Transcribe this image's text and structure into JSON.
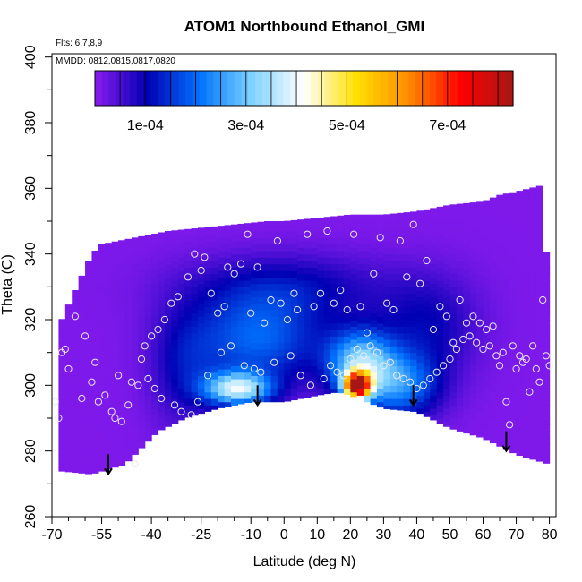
{
  "chart_data": {
    "type": "heatmap",
    "title": "ATOM1 Northbound Ethanol_GMI",
    "annotations": [
      "Flts: 6,7,8,9",
      "MMDD: 0812,0815,0817,0820"
    ],
    "xlabel": "Latitude (deg N)",
    "ylabel": "Theta (C)",
    "xlim": [
      -70,
      82
    ],
    "ylim": [
      260,
      401
    ],
    "x_ticks": [
      -70,
      -55,
      -40,
      -25,
      -10,
      0,
      10,
      20,
      30,
      40,
      50,
      60,
      70,
      80
    ],
    "x_tick_labels": [
      "-70",
      "-55",
      "-40",
      "-25",
      "-10",
      "0",
      "10",
      "20",
      "30",
      "40",
      "50",
      "60",
      "70",
      "80"
    ],
    "x_minor_ticks": [
      -65,
      -60,
      -50,
      -45,
      -35,
      -30,
      -20,
      -15,
      -5,
      5,
      15,
      25,
      35,
      45,
      55,
      65,
      75
    ],
    "y_ticks": [
      260,
      280,
      300,
      320,
      340,
      360,
      380,
      400
    ],
    "y_tick_labels": [
      "260",
      "280",
      "300",
      "320",
      "340",
      "360",
      "380",
      "400"
    ],
    "y_minor_ticks": [
      270,
      290,
      310,
      330,
      350,
      370,
      390
    ],
    "colorbar": {
      "range": [
        0,
        0.00083
      ],
      "ticks": [
        0.0001,
        0.0003,
        0.0005,
        0.0007
      ],
      "tick_labels": [
        "1e-04",
        "3e-04",
        "5e-04",
        "7e-04"
      ],
      "colors": [
        "#8b1cf0",
        "#0000b4",
        "#0073ff",
        "#7ed2ff",
        "#ffffff",
        "#ffe100",
        "#ff8c00",
        "#ff0000",
        "#a61616"
      ]
    },
    "field": {
      "lat_range": [
        -68,
        80
      ],
      "top_boundary": [
        [
          -68,
          318
        ],
        [
          -58,
          340
        ],
        [
          -55,
          343
        ],
        [
          -45,
          345
        ],
        [
          -35,
          347
        ],
        [
          -25,
          348
        ],
        [
          -15,
          349
        ],
        [
          -5,
          350
        ],
        [
          0,
          350
        ],
        [
          10,
          351
        ],
        [
          20,
          352
        ],
        [
          30,
          352
        ],
        [
          40,
          353
        ],
        [
          50,
          355
        ],
        [
          60,
          356
        ],
        [
          65,
          358
        ],
        [
          70,
          359
        ],
        [
          78,
          361
        ],
        [
          80,
          320
        ]
      ],
      "bottom_boundary": [
        [
          -68,
          274
        ],
        [
          -58,
          273
        ],
        [
          -48,
          276
        ],
        [
          -38,
          286
        ],
        [
          -30,
          290
        ],
        [
          -20,
          293
        ],
        [
          -10,
          295
        ],
        [
          0,
          295
        ],
        [
          10,
          297
        ],
        [
          16,
          298
        ],
        [
          20,
          297
        ],
        [
          30,
          293
        ],
        [
          40,
          292
        ],
        [
          50,
          287
        ],
        [
          60,
          284
        ],
        [
          70,
          279
        ],
        [
          80,
          276
        ]
      ],
      "background_value": 1e-05,
      "features": [
        {
          "lat": -14,
          "theta": 299,
          "value": 0.00034,
          "lat_width": 10,
          "theta_width": 5
        },
        {
          "lat": -8,
          "theta": 314,
          "value": 0.00018,
          "lat_width": 20,
          "theta_width": 14
        },
        {
          "lat": 1,
          "theta": 330,
          "value": 9e-05,
          "lat_width": 30,
          "theta_width": 10
        },
        {
          "lat": 22,
          "theta": 300,
          "value": 0.00072,
          "lat_width": 4,
          "theta_width": 4
        },
        {
          "lat": 23,
          "theta": 307,
          "value": 0.00028,
          "lat_width": 10,
          "theta_width": 10
        },
        {
          "lat": 35,
          "theta": 300,
          "value": 0.0002,
          "lat_width": 12,
          "theta_width": 10
        },
        {
          "lat": 43,
          "theta": 318,
          "value": 9e-05,
          "lat_width": 15,
          "theta_width": 15
        },
        {
          "lat": -30,
          "theta": 305,
          "value": 8e-05,
          "lat_width": 10,
          "theta_width": 18
        }
      ]
    },
    "observation_points": [
      [
        -69,
        295
      ],
      [
        -68,
        290
      ],
      [
        -67,
        310
      ],
      [
        -66,
        311
      ],
      [
        -63,
        321
      ],
      [
        -61,
        296
      ],
      [
        -58,
        301
      ],
      [
        -56,
        295
      ],
      [
        -54,
        297
      ],
      [
        -52,
        292
      ],
      [
        -51,
        290
      ],
      [
        -49,
        289
      ],
      [
        -47,
        294
      ],
      [
        -45,
        276
      ],
      [
        -43,
        308
      ],
      [
        -42,
        312
      ],
      [
        -40,
        315
      ],
      [
        -38,
        317
      ],
      [
        -36,
        320
      ],
      [
        -34,
        325
      ],
      [
        -32,
        327
      ],
      [
        -29,
        333
      ],
      [
        -27,
        340
      ],
      [
        -25,
        335
      ],
      [
        -24,
        339
      ],
      [
        -22,
        328
      ],
      [
        -20,
        322
      ],
      [
        -18,
        324
      ],
      [
        -17,
        336
      ],
      [
        -15,
        334
      ],
      [
        -13,
        337
      ],
      [
        -11,
        346
      ],
      [
        -10,
        322
      ],
      [
        -8,
        336
      ],
      [
        -6,
        319
      ],
      [
        -4,
        326
      ],
      [
        -2,
        344
      ],
      [
        -1,
        325
      ],
      [
        1,
        320
      ],
      [
        3,
        328
      ],
      [
        4,
        323
      ],
      [
        7,
        346
      ],
      [
        9,
        324
      ],
      [
        11,
        328
      ],
      [
        13,
        347
      ],
      [
        15,
        325
      ],
      [
        17,
        329
      ],
      [
        19,
        323
      ],
      [
        21,
        346
      ],
      [
        23,
        324
      ],
      [
        25,
        316
      ],
      [
        27,
        334
      ],
      [
        29,
        345
      ],
      [
        31,
        325
      ],
      [
        33,
        323
      ],
      [
        35,
        344
      ],
      [
        37,
        333
      ],
      [
        39,
        349
      ],
      [
        41,
        331
      ],
      [
        43,
        338
      ],
      [
        45,
        317
      ],
      [
        47,
        324
      ],
      [
        49,
        321
      ],
      [
        51,
        313
      ],
      [
        53,
        326
      ],
      [
        55,
        319
      ],
      [
        57,
        321
      ],
      [
        59,
        319
      ],
      [
        61,
        317
      ],
      [
        63,
        318
      ],
      [
        65,
        306
      ],
      [
        67,
        295
      ],
      [
        68,
        288
      ],
      [
        70,
        305
      ],
      [
        71,
        309
      ],
      [
        72,
        307
      ],
      [
        73,
        308
      ],
      [
        74,
        298
      ],
      [
        75,
        312
      ],
      [
        76,
        305
      ],
      [
        77,
        301
      ],
      [
        78,
        326
      ],
      [
        79,
        309
      ],
      [
        80,
        306
      ],
      [
        -65,
        305
      ],
      [
        -60,
        315
      ],
      [
        -57,
        307
      ],
      [
        -50,
        303
      ],
      [
        -46,
        301
      ],
      [
        -44,
        300
      ],
      [
        -41,
        302
      ],
      [
        -39,
        299
      ],
      [
        -37,
        296
      ],
      [
        -33,
        294
      ],
      [
        -31,
        292
      ],
      [
        -28,
        291
      ],
      [
        -26,
        295
      ],
      [
        -23,
        303
      ],
      [
        -19,
        310
      ],
      [
        -16,
        312
      ],
      [
        -12,
        306
      ],
      [
        -9,
        305
      ],
      [
        -7,
        304
      ],
      [
        -3,
        307
      ],
      [
        2,
        309
      ],
      [
        5,
        303
      ],
      [
        8,
        300
      ],
      [
        12,
        302
      ],
      [
        14,
        306
      ],
      [
        16,
        304
      ],
      [
        18,
        303
      ],
      [
        20,
        308
      ],
      [
        22,
        311
      ],
      [
        24,
        309
      ],
      [
        26,
        312
      ],
      [
        28,
        310
      ],
      [
        30,
        306
      ],
      [
        32,
        307
      ],
      [
        34,
        303
      ],
      [
        36,
        302
      ],
      [
        38,
        301
      ],
      [
        40,
        299
      ],
      [
        42,
        300
      ],
      [
        44,
        302
      ],
      [
        46,
        304
      ],
      [
        48,
        306
      ],
      [
        50,
        308
      ],
      [
        52,
        311
      ],
      [
        54,
        314
      ],
      [
        56,
        315
      ],
      [
        58,
        313
      ],
      [
        60,
        311
      ],
      [
        62,
        312
      ],
      [
        64,
        309
      ],
      [
        66,
        310
      ],
      [
        69,
        312
      ]
    ],
    "flight_turn_arrows": [
      {
        "lat": -53,
        "theta_start": 279,
        "theta_end": 273
      },
      {
        "lat": -8,
        "theta_start": 300,
        "theta_end": 294
      },
      {
        "lat": 39,
        "theta_start": 300,
        "theta_end": 294
      },
      {
        "lat": 67,
        "theta_start": 286,
        "theta_end": 280
      }
    ]
  }
}
